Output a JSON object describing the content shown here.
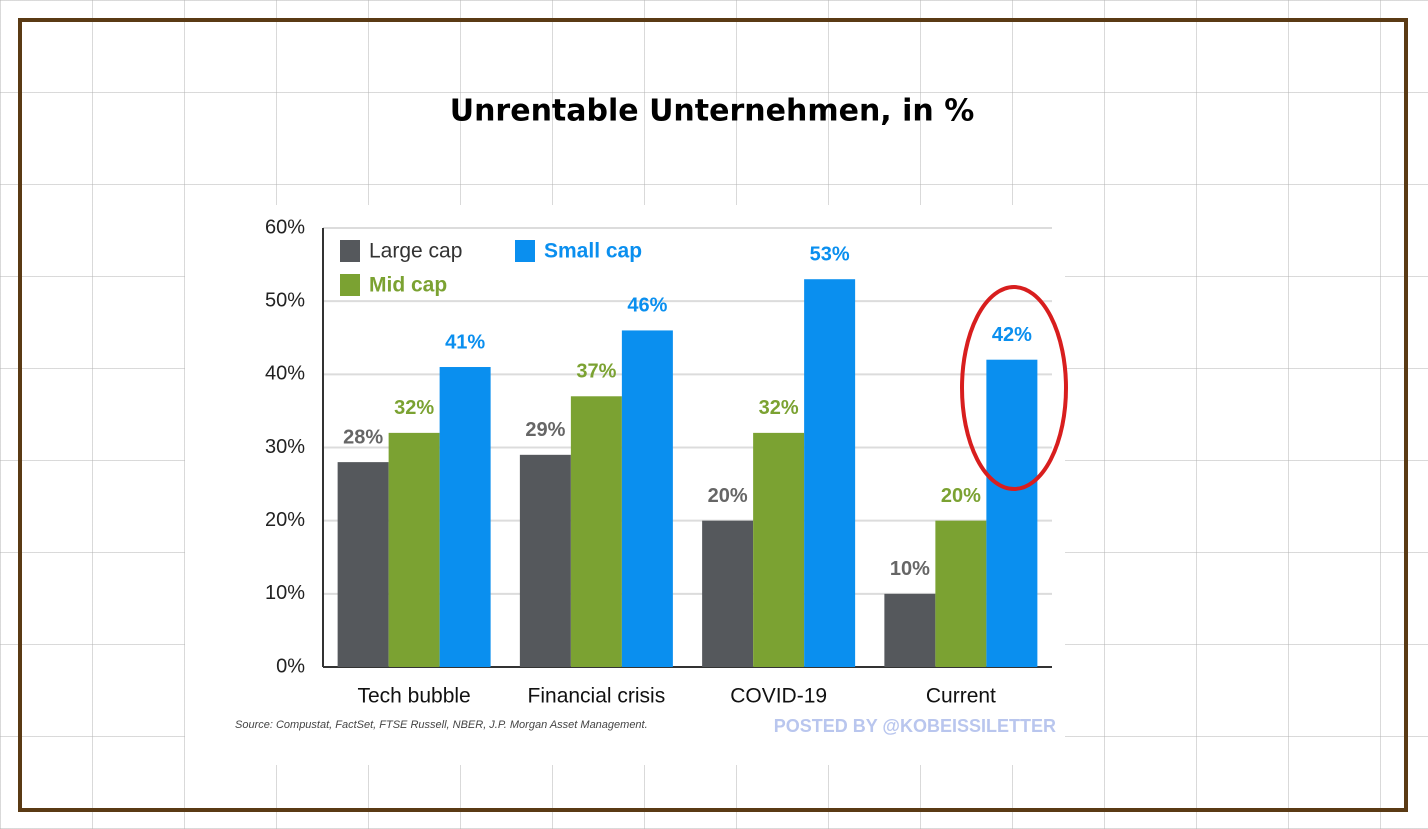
{
  "chart_data": {
    "type": "bar",
    "title": "Unrentable Unternehmen, in %",
    "categories": [
      "Tech bubble",
      "Financial crisis",
      "COVID-19",
      "Current"
    ],
    "series": [
      {
        "name": "Large cap",
        "color": "#55585c",
        "values": [
          28,
          29,
          20,
          10
        ],
        "value_labels": [
          "28%",
          "29%",
          "20%",
          "10%"
        ]
      },
      {
        "name": "Mid cap",
        "color": "#7ba232",
        "values": [
          32,
          37,
          32,
          20
        ],
        "value_labels": [
          "32%",
          "37%",
          "32%",
          "20%"
        ]
      },
      {
        "name": "Small cap",
        "color": "#0a8fef",
        "values": [
          41,
          46,
          53,
          42
        ],
        "value_labels": [
          "41%",
          "46%",
          "53%",
          "42%"
        ]
      }
    ],
    "ylim": [
      0,
      60
    ],
    "yticks": [
      {
        "value": 0,
        "label": "0%"
      },
      {
        "value": 10,
        "label": "10%"
      },
      {
        "value": 20,
        "label": "20%"
      },
      {
        "value": 30,
        "label": "30%"
      },
      {
        "value": 40,
        "label": "40%"
      },
      {
        "value": 50,
        "label": "50%"
      },
      {
        "value": 60,
        "label": "60%"
      }
    ],
    "grid": true,
    "source": "Source: Compustat, FactSet, FTSE Russell, NBER, J.P. Morgan Asset Management.",
    "watermark": "POSTED BY @KOBEISSILETTER"
  }
}
